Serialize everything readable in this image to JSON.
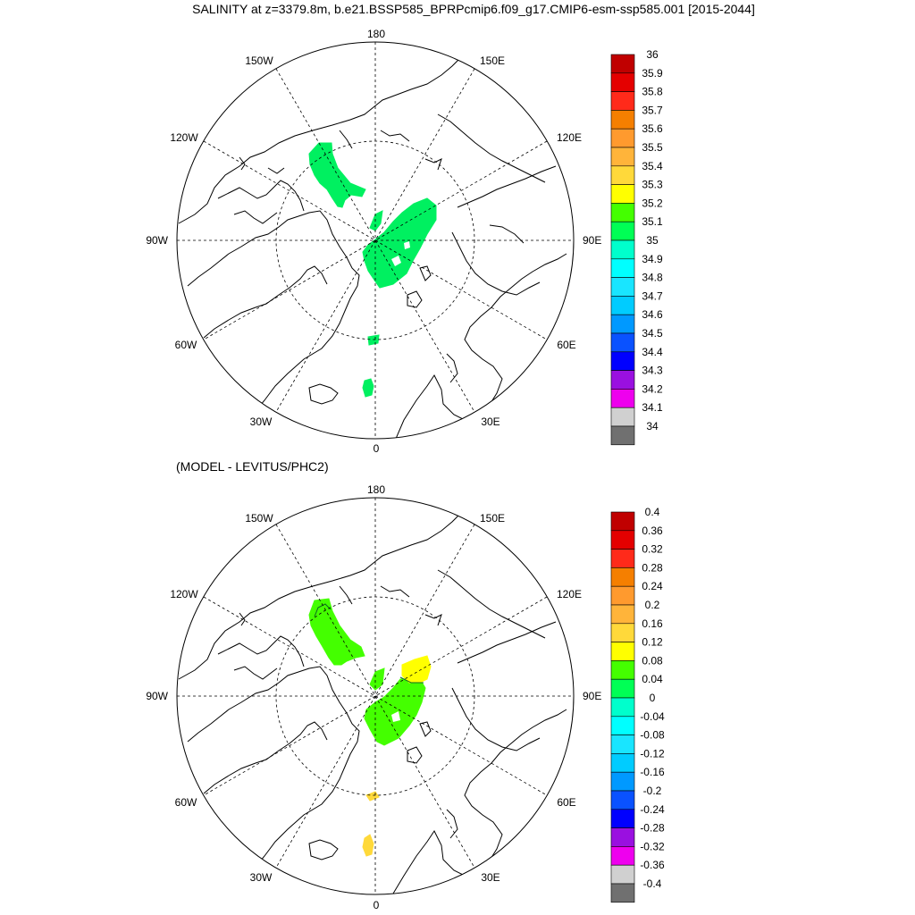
{
  "title": "SALINITY at z=3379.8m, b.e21.BSSP585_BPRPcmip6.f09_g17.CMIP6-esm-ssp585.001 [2015-2044]",
  "panels": [
    {
      "subtitle": "",
      "lon_labels": {
        "top": "180",
        "bottom": "0",
        "left": "90W",
        "right": "90E",
        "upper_left": "150W",
        "upper_right": "150E",
        "mid_upper_left": "120W",
        "mid_upper_right": "120E",
        "mid_lower_left": "60W",
        "mid_lower_right": "60E",
        "lower_left": "30W",
        "lower_right": "30E"
      },
      "colorbar": {
        "labels": [
          "36",
          "35.9",
          "35.8",
          "35.7",
          "35.6",
          "35.5",
          "35.4",
          "35.3",
          "35.2",
          "35.1",
          "35",
          "34.9",
          "34.8",
          "34.7",
          "34.6",
          "34.5",
          "34.4",
          "34.3",
          "34.2",
          "34.1",
          "34"
        ],
        "colors": [
          "#c00000",
          "#e40000",
          "#ff2a1a",
          "#f57f00",
          "#ff9a2e",
          "#ffb43a",
          "#ffd93a",
          "#ffff00",
          "#44ff00",
          "#00ff55",
          "#00ffcc",
          "#00ffff",
          "#19e5ff",
          "#00ccff",
          "#0099ff",
          "#0a52ff",
          "#0000ff",
          "#9a10e0",
          "#ee00ee",
          "#d0d0d0",
          "#707070"
        ]
      },
      "fields": [
        {
          "name": "beaufort-patch",
          "color": "#00f060"
        },
        {
          "name": "eurasian-basin-patch",
          "color": "#00f060"
        },
        {
          "name": "fram-patch",
          "color": "#00f060"
        },
        {
          "name": "greenland-sea-patch",
          "color": "#00f060"
        }
      ]
    },
    {
      "subtitle": "(MODEL - LEVITUS/PHC2)",
      "lon_labels": {
        "top": "180",
        "bottom": "0",
        "left": "90W",
        "right": "90E",
        "upper_left": "150W",
        "upper_right": "150E",
        "mid_upper_left": "120W",
        "mid_upper_right": "120E",
        "mid_lower_left": "60W",
        "mid_lower_right": "60E",
        "lower_left": "30W",
        "lower_right": "30E"
      },
      "colorbar": {
        "labels": [
          "0.4",
          "0.36",
          "0.32",
          "0.28",
          "0.24",
          "0.2",
          "0.16",
          "0.12",
          "0.08",
          "0.04",
          "0",
          "-0.04",
          "-0.08",
          "-0.12",
          "-0.16",
          "-0.2",
          "-0.24",
          "-0.28",
          "-0.32",
          "-0.36",
          "-0.4"
        ],
        "colors": [
          "#c00000",
          "#e40000",
          "#ff2a1a",
          "#f57f00",
          "#ff9a2e",
          "#ffb43a",
          "#ffd93a",
          "#ffff00",
          "#44ff00",
          "#00ff55",
          "#00ffcc",
          "#00ffff",
          "#19e5ff",
          "#00ccff",
          "#0099ff",
          "#0a52ff",
          "#0000ff",
          "#9a10e0",
          "#ee00ee",
          "#d0d0d0",
          "#707070"
        ]
      },
      "fields": [
        {
          "name": "beaufort-patch",
          "color": "#44ff00"
        },
        {
          "name": "eurasian-basin-patch",
          "color": "#44ff00"
        },
        {
          "name": "siberian-yellow-patch",
          "color": "#ffff00"
        },
        {
          "name": "fram-patch",
          "color": "#ffd93a"
        },
        {
          "name": "greenland-sea-patch",
          "color": "#ffd93a"
        }
      ]
    }
  ]
}
